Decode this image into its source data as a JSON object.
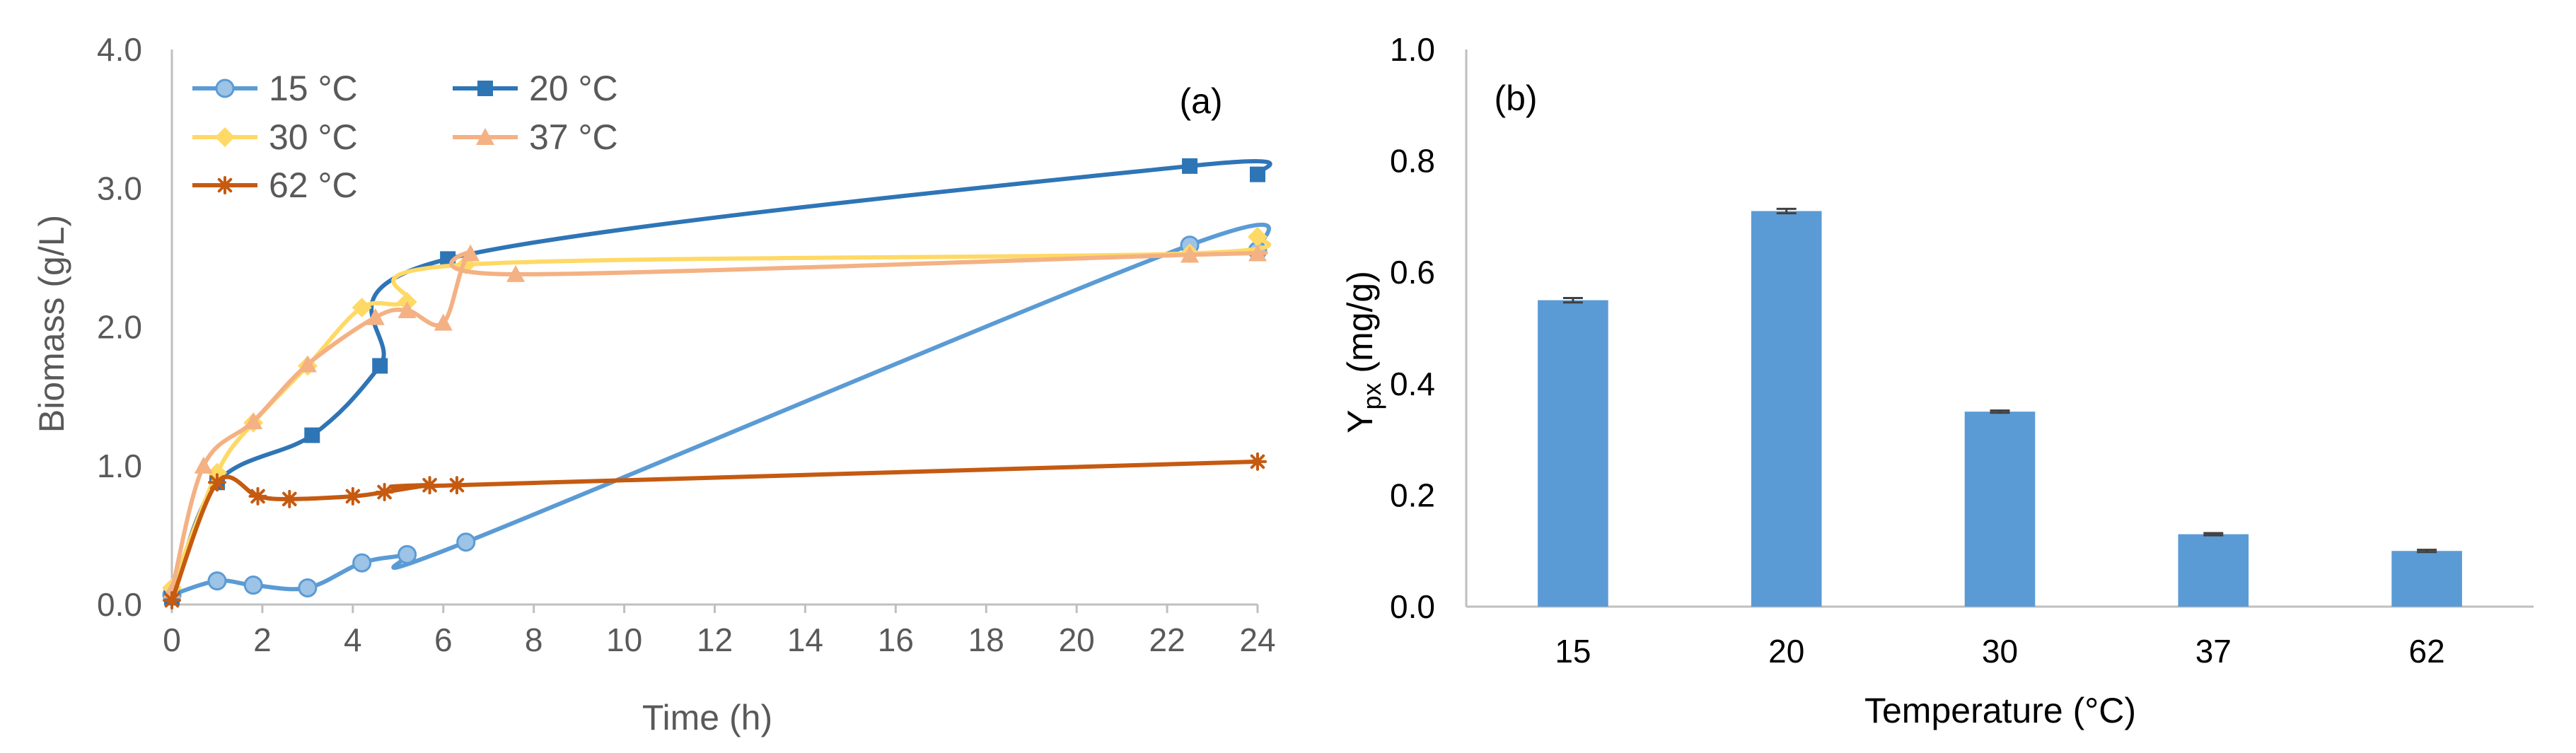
{
  "chart_data": [
    {
      "type": "line",
      "panel_label": "(a)",
      "xlabel": "Time (h)",
      "ylabel": "Biomass (g/L)",
      "xlim": [
        0,
        24
      ],
      "ylim": [
        0,
        4
      ],
      "xticks": [
        "0",
        "2",
        "4",
        "6",
        "8",
        "10",
        "12",
        "14",
        "16",
        "18",
        "20",
        "22",
        "24"
      ],
      "yticks": [
        "0.0",
        "1.0",
        "2.0",
        "3.0",
        "4.0"
      ],
      "grid": false,
      "legend_position": "top-left",
      "series": [
        {
          "name": "15 °C",
          "color": "#5B9BD5",
          "marker": "circle",
          "x": [
            0,
            1,
            1.8,
            3,
            4.2,
            5.2,
            6.5,
            22.5,
            24
          ],
          "y": [
            0.07,
            0.17,
            0.14,
            0.12,
            0.3,
            0.36,
            0.45,
            2.59,
            2.55
          ]
        },
        {
          "name": "20 °C",
          "color": "#2E75B6",
          "marker": "square",
          "x": [
            0,
            1,
            3.1,
            4.6,
            6.1,
            22.5,
            24
          ],
          "y": [
            0.05,
            0.88,
            1.22,
            1.72,
            2.49,
            3.16,
            3.1
          ]
        },
        {
          "name": "30 °C",
          "color": "#FFD966",
          "marker": "diamond",
          "x": [
            0,
            1,
            1.8,
            3,
            4.2,
            5.2,
            6.5,
            22.5,
            24
          ],
          "y": [
            0.12,
            0.95,
            1.31,
            1.72,
            2.14,
            2.18,
            2.45,
            2.53,
            2.65
          ]
        },
        {
          "name": "37 °C",
          "color": "#F4B183",
          "marker": "triangle",
          "x": [
            0,
            0.7,
            1.8,
            3,
            4.5,
            5.2,
            6,
            6.6,
            7.6,
            22.5,
            24
          ],
          "y": [
            0.1,
            1.0,
            1.32,
            1.73,
            2.07,
            2.12,
            2.03,
            2.53,
            2.38,
            2.52,
            2.53
          ]
        },
        {
          "name": "62 °C",
          "color": "#C55A11",
          "marker": "star",
          "x": [
            0,
            1,
            1.9,
            2.6,
            4,
            4.7,
            5.7,
            6.3,
            24
          ],
          "y": [
            0.03,
            0.88,
            0.78,
            0.76,
            0.78,
            0.81,
            0.86,
            0.86,
            1.03
          ]
        }
      ]
    },
    {
      "type": "bar",
      "panel_label": "(b)",
      "xlabel": "Temperature (°C)",
      "ylabel_main": "Y",
      "ylabel_sub": "px",
      "ylabel_unit": " (mg/g)",
      "categories": [
        "15",
        "20",
        "30",
        "37",
        "62"
      ],
      "values": [
        0.55,
        0.71,
        0.35,
        0.13,
        0.1
      ],
      "error": [
        0.004,
        0.004,
        0.002,
        0.002,
        0.002
      ],
      "ylim": [
        0,
        1
      ],
      "yticks": [
        "0.0",
        "0.2",
        "0.4",
        "0.6",
        "0.8",
        "1.0"
      ],
      "bar_color": "#5B9BD5",
      "grid": false
    }
  ]
}
